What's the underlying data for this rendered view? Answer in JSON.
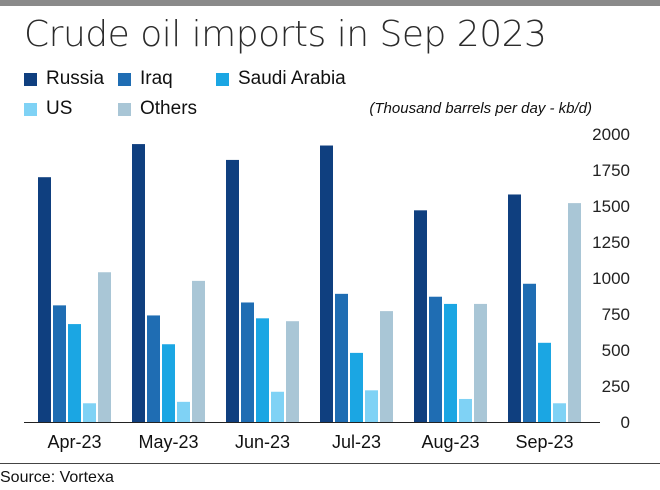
{
  "title": "Crude oil imports in Sep 2023",
  "unit_note": "(Thousand barrels per day - kb/d)",
  "source": "Source: Vortexa",
  "legend": [
    {
      "label": "Russia",
      "color": "#0f3f7f"
    },
    {
      "label": "Iraq",
      "color": "#1f6db3"
    },
    {
      "label": "Saudi Arabia",
      "color": "#1ba6e3"
    },
    {
      "label": "US",
      "color": "#7fd2f5"
    },
    {
      "label": "Others",
      "color": "#a9c6d6"
    }
  ],
  "chart_data": {
    "type": "bar",
    "categories": [
      "Apr-23",
      "May-23",
      "Jun-23",
      "Jul-23",
      "Aug-23",
      "Sep-23"
    ],
    "series": [
      {
        "name": "Russia",
        "color": "#0f3f7f",
        "values": [
          1700,
          1930,
          1820,
          1920,
          1470,
          1580
        ]
      },
      {
        "name": "Iraq",
        "color": "#1f6db3",
        "values": [
          810,
          740,
          830,
          890,
          870,
          960
        ]
      },
      {
        "name": "Saudi Arabia",
        "color": "#1ba6e3",
        "values": [
          680,
          540,
          720,
          480,
          820,
          550
        ]
      },
      {
        "name": "US",
        "color": "#7fd2f5",
        "values": [
          130,
          140,
          210,
          220,
          160,
          130
        ]
      },
      {
        "name": "Others",
        "color": "#a9c6d6",
        "values": [
          1040,
          980,
          700,
          770,
          820,
          1520
        ]
      }
    ],
    "yticks": [
      0,
      250,
      500,
      750,
      1000,
      1250,
      1500,
      1750,
      2000
    ],
    "ylim": [
      0,
      2000
    ],
    "title": "Crude oil imports in Sep 2023",
    "xlabel": "",
    "ylabel": "(Thousand barrels per day - kb/d)",
    "y_axis_side": "right",
    "grid": false,
    "legend_position": "top"
  }
}
